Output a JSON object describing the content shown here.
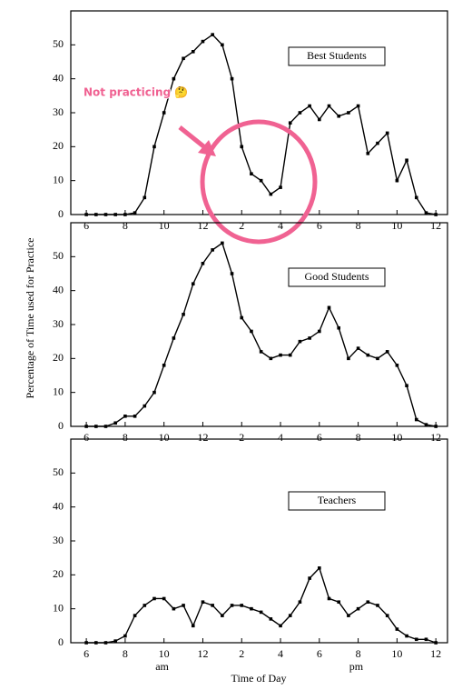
{
  "chart_data": [
    {
      "type": "line",
      "title": "Best Students",
      "x": [
        6,
        6.5,
        7,
        7.5,
        8,
        8.5,
        9,
        9.5,
        10,
        10.5,
        11,
        11.5,
        12,
        12.5,
        13,
        13.5,
        14,
        14.5,
        15,
        15.5,
        16,
        16.5,
        17,
        17.5,
        18,
        18.5,
        19,
        19.5,
        20,
        20.5,
        21,
        21.5,
        22,
        22.5,
        23,
        23.5,
        24
      ],
      "values": [
        0,
        0,
        0,
        0,
        0,
        0.5,
        5,
        20,
        30,
        40,
        46,
        48,
        51,
        53,
        50,
        40,
        20,
        12,
        10,
        6,
        8,
        27,
        30,
        32,
        28,
        32,
        29,
        30,
        32,
        18,
        21,
        24,
        10,
        16,
        5,
        0.5,
        0
      ],
      "color": "#000000",
      "xlim": [
        5.2,
        24.6
      ],
      "ylim": [
        0,
        60
      ],
      "xticks": [
        6,
        8,
        10,
        12,
        {
          "value": 14,
          "label": "2"
        },
        {
          "value": 16,
          "label": "4"
        },
        {
          "value": 18,
          "label": "6"
        },
        {
          "value": 20,
          "label": "8"
        },
        {
          "value": 22,
          "label": "10"
        },
        {
          "value": 24,
          "label": "12"
        }
      ],
      "yticks": [
        0,
        10,
        20,
        30,
        40,
        50
      ],
      "annotation": "Not practicing 🤔"
    },
    {
      "type": "line",
      "title": "Good Students",
      "x": [
        6,
        6.5,
        7,
        7.5,
        8,
        8.5,
        9,
        9.5,
        10,
        10.5,
        11,
        11.5,
        12,
        12.5,
        13,
        13.5,
        14,
        14.5,
        15,
        15.5,
        16,
        16.5,
        17,
        17.5,
        18,
        18.5,
        19,
        19.5,
        20,
        20.5,
        21,
        21.5,
        22,
        22.5,
        23,
        23.5,
        24
      ],
      "values": [
        0,
        0,
        0,
        1,
        3,
        3,
        6,
        10,
        18,
        26,
        33,
        42,
        48,
        52,
        54,
        45,
        32,
        28,
        22,
        20,
        21,
        21,
        25,
        26,
        28,
        35,
        29,
        20,
        23,
        21,
        20,
        22,
        18,
        12,
        2,
        0.5,
        0
      ],
      "color": "#000000",
      "xlim": [
        5.2,
        24.6
      ],
      "ylim": [
        0,
        60
      ],
      "xticks": [
        6,
        8,
        10,
        12,
        {
          "value": 14,
          "label": "2"
        },
        {
          "value": 16,
          "label": "4"
        },
        {
          "value": 18,
          "label": "6"
        },
        {
          "value": 20,
          "label": "8"
        },
        {
          "value": 22,
          "label": "10"
        },
        {
          "value": 24,
          "label": "12"
        }
      ],
      "yticks": [
        0,
        10,
        20,
        30,
        40,
        50
      ],
      "ylabel": "Percentage of Time used for Practice"
    },
    {
      "type": "line",
      "title": "Teachers",
      "x": [
        6,
        6.5,
        7,
        7.5,
        8,
        8.5,
        9,
        9.5,
        10,
        10.5,
        11,
        11.5,
        12,
        12.5,
        13,
        13.5,
        14,
        14.5,
        15,
        15.5,
        16,
        16.5,
        17,
        17.5,
        18,
        18.5,
        19,
        19.5,
        20,
        20.5,
        21,
        21.5,
        22,
        22.5,
        23,
        23.5,
        24
      ],
      "values": [
        0,
        0,
        0,
        0.5,
        2,
        8,
        11,
        13,
        13,
        10,
        11,
        5,
        12,
        11,
        8,
        11,
        11,
        10,
        9,
        7,
        5,
        8,
        12,
        19,
        22,
        13,
        12,
        8,
        10,
        12,
        11,
        8,
        4,
        2,
        1,
        1,
        0
      ],
      "color": "#000000",
      "xlim": [
        5.2,
        24.6
      ],
      "ylim": [
        0,
        60
      ],
      "xticks": [
        6,
        8,
        10,
        12,
        {
          "value": 14,
          "label": "2"
        },
        {
          "value": 16,
          "label": "4"
        },
        {
          "value": 18,
          "label": "6"
        },
        {
          "value": 20,
          "label": "8"
        },
        {
          "value": 22,
          "label": "10"
        },
        {
          "value": 24,
          "label": "12"
        }
      ],
      "yticks": [
        0,
        10,
        20,
        30,
        40,
        50
      ],
      "xlabel": "Time of Day",
      "annotations": [
        {
          "text": "am",
          "x": 9.9
        },
        {
          "text": "pm",
          "x": 19.9
        }
      ]
    }
  ]
}
